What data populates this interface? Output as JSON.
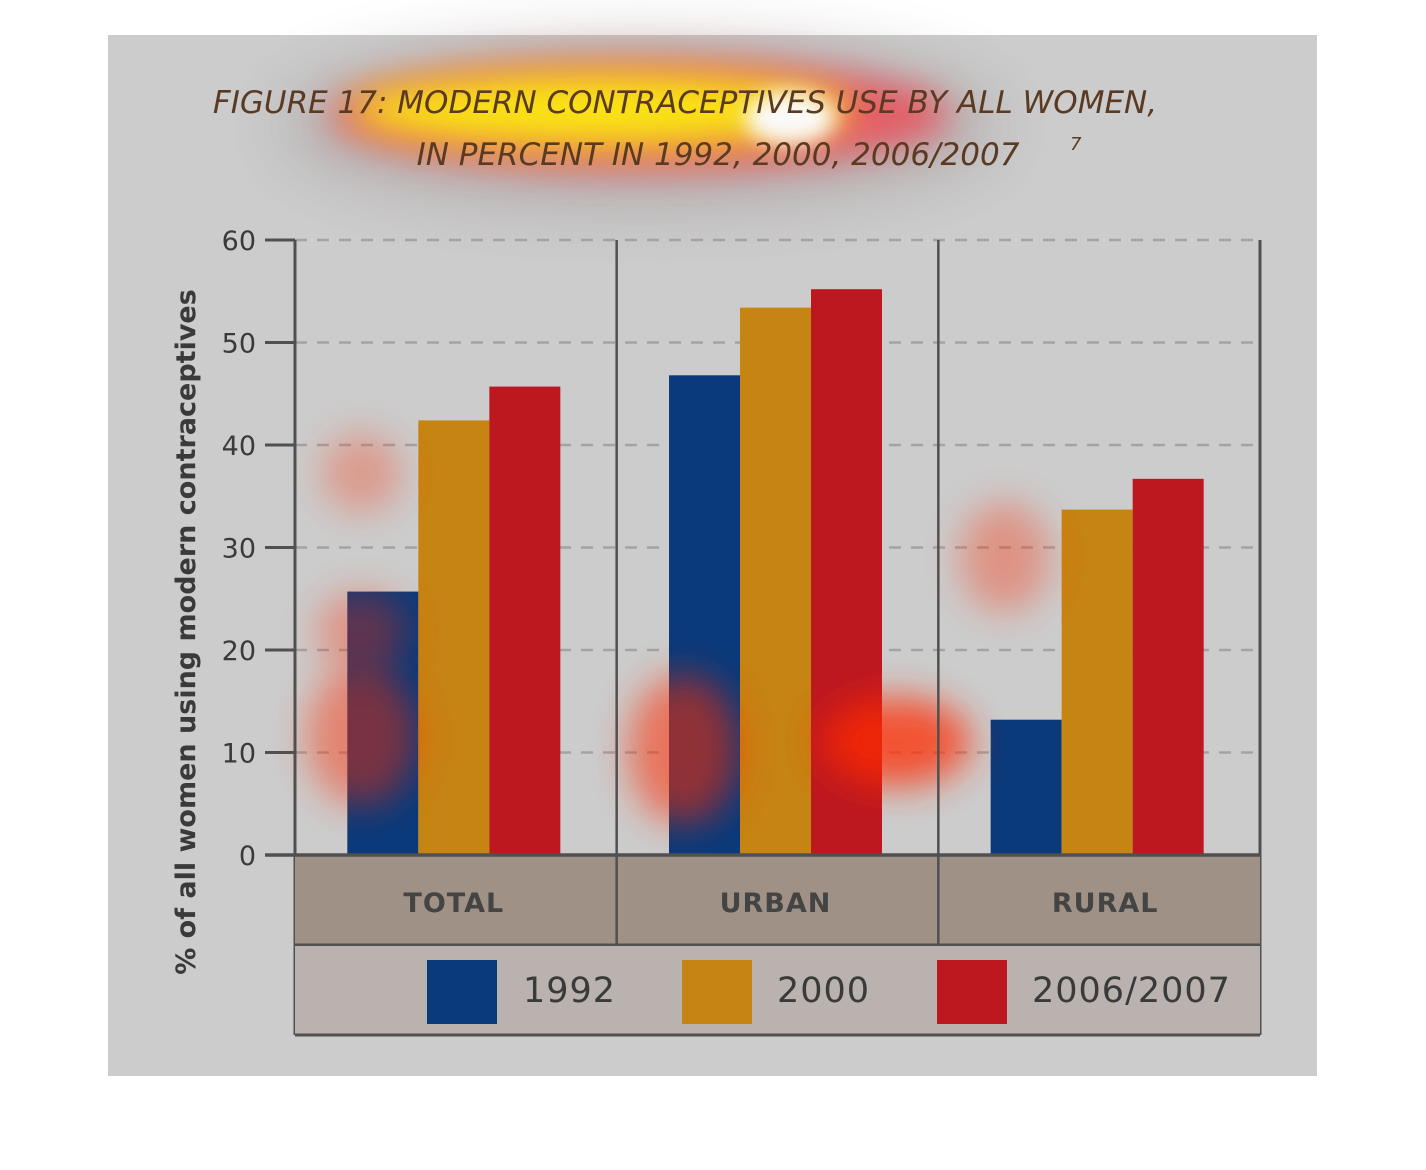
{
  "chart_data": {
    "type": "bar",
    "title": "FIGURE 17: MODERN CONTRACEPTIVES USE BY ALL WOMEN,",
    "subtitle": "IN PERCENT IN 1992, 2000, 2006/2007",
    "title_superscript": "7",
    "xlabel": "",
    "ylabel": "% of all women using modern contraceptives",
    "ylim": [
      0,
      60
    ],
    "yticks": [
      0,
      10,
      20,
      30,
      40,
      50,
      60
    ],
    "grid": true,
    "legend_position": "bottom",
    "categories": [
      "TOTAL",
      "URBAN",
      "RURAL"
    ],
    "series": [
      {
        "name": "1992",
        "color": "#0a3a7a",
        "values": [
          25.7,
          46.8,
          13.2
        ]
      },
      {
        "name": "2000",
        "color": "#c68412",
        "values": [
          42.4,
          53.4,
          33.7
        ]
      },
      {
        "name": "2006/2007",
        "color": "#bd1820",
        "values": [
          45.7,
          55.2,
          36.7
        ]
      }
    ]
  },
  "colors": {
    "panel_background": "#cccccc",
    "category_band": "#9f9185",
    "legend_band": "#b9b2ae",
    "axis": "#505050",
    "grid": "#a3a3a3",
    "heatmap_overlay": "#ff2a00"
  }
}
